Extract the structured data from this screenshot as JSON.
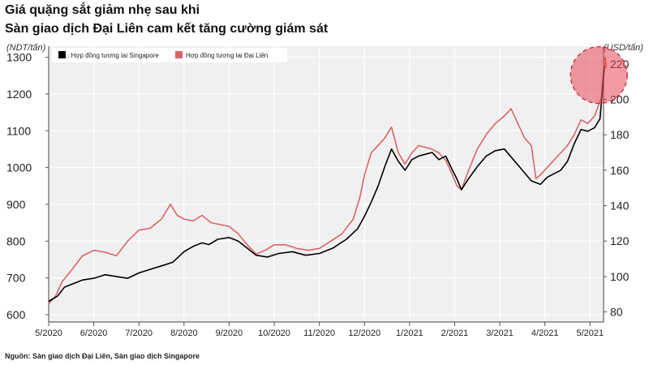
{
  "title_line1": "Giá quặng sắt giảm nhẹ sau khi",
  "title_line2": "Sàn giao dịch Đại Liên cam kết tăng cường giám sát",
  "source": "Nguồn: Sàn giao dịch Đại Liên, Sàn giao dịch Singapore",
  "chart_data": {
    "type": "line",
    "title": "Giá quặng sắt giảm nhẹ sau khi Sàn giao dịch Đại Liên cam kết tăng cường giám sát",
    "x_ticks": [
      "5/2020",
      "6/2020",
      "7/2020",
      "8/2020",
      "9/2020",
      "10/2020",
      "11/2020",
      "12/2020",
      "1/2021",
      "2/2021",
      "3/2021",
      "4/2021",
      "5/2021"
    ],
    "x_tick_positions": [
      0,
      1,
      2,
      3,
      4,
      5,
      6,
      7,
      8,
      9,
      10,
      11,
      12
    ],
    "xlim": [
      0,
      12.3
    ],
    "y_left": {
      "label": "(NDT/tấn)",
      "ticks": [
        600,
        700,
        800,
        900,
        1000,
        1100,
        1200,
        1300
      ],
      "lim": [
        580,
        1330
      ]
    },
    "y_right": {
      "label": "(USD/tấn)",
      "ticks": [
        80,
        100,
        120,
        140,
        160,
        180,
        200,
        220
      ],
      "lim": [
        74.3,
        230
      ]
    },
    "legend": {
      "placement": "top-left"
    },
    "series": [
      {
        "name": ": Hợp đồng tương lai Singapore",
        "axis": "right",
        "color": "#000000",
        "points": [
          [
            0,
            86
          ],
          [
            0.2,
            89
          ],
          [
            0.35,
            94
          ],
          [
            0.55,
            96
          ],
          [
            0.75,
            98
          ],
          [
            1,
            99
          ],
          [
            1.25,
            101
          ],
          [
            1.5,
            100
          ],
          [
            1.75,
            99
          ],
          [
            2,
            102
          ],
          [
            2.25,
            104
          ],
          [
            2.5,
            106
          ],
          [
            2.75,
            108
          ],
          [
            3,
            114
          ],
          [
            3.2,
            117
          ],
          [
            3.4,
            119
          ],
          [
            3.55,
            118
          ],
          [
            3.75,
            121
          ],
          [
            4,
            122
          ],
          [
            4.2,
            120
          ],
          [
            4.4,
            116
          ],
          [
            4.6,
            112
          ],
          [
            4.85,
            111
          ],
          [
            5.1,
            113
          ],
          [
            5.4,
            114
          ],
          [
            5.7,
            112
          ],
          [
            6,
            113
          ],
          [
            6.3,
            116
          ],
          [
            6.6,
            121
          ],
          [
            6.85,
            127
          ],
          [
            7,
            134
          ],
          [
            7.15,
            142
          ],
          [
            7.3,
            151
          ],
          [
            7.45,
            162
          ],
          [
            7.6,
            172
          ],
          [
            7.75,
            165
          ],
          [
            7.9,
            160
          ],
          [
            8.05,
            166
          ],
          [
            8.2,
            168
          ],
          [
            8.35,
            169
          ],
          [
            8.5,
            170
          ],
          [
            8.65,
            166
          ],
          [
            8.8,
            168
          ],
          [
            8.95,
            160
          ],
          [
            9.05,
            155
          ],
          [
            9.15,
            149
          ],
          [
            9.3,
            155
          ],
          [
            9.5,
            162
          ],
          [
            9.7,
            168
          ],
          [
            9.9,
            171
          ],
          [
            10.1,
            172
          ],
          [
            10.3,
            166
          ],
          [
            10.5,
            160
          ],
          [
            10.7,
            154
          ],
          [
            10.9,
            152
          ],
          [
            11.05,
            156
          ],
          [
            11.2,
            158
          ],
          [
            11.35,
            160
          ],
          [
            11.5,
            165
          ],
          [
            11.65,
            175
          ],
          [
            11.8,
            183
          ],
          [
            11.95,
            182
          ],
          [
            12.1,
            184
          ],
          [
            12.22,
            189
          ],
          [
            12.32,
            219
          ]
        ]
      },
      {
        "name": "Hợp đồng tương lai Đại Liên",
        "axis": "left",
        "color": "#d9656b",
        "points": [
          [
            0,
            630
          ],
          [
            0.15,
            650
          ],
          [
            0.3,
            690
          ],
          [
            0.5,
            720
          ],
          [
            0.75,
            760
          ],
          [
            1,
            775
          ],
          [
            1.25,
            770
          ],
          [
            1.5,
            760
          ],
          [
            1.75,
            800
          ],
          [
            2,
            830
          ],
          [
            2.25,
            835
          ],
          [
            2.5,
            860
          ],
          [
            2.7,
            900
          ],
          [
            2.85,
            870
          ],
          [
            3,
            860
          ],
          [
            3.2,
            855
          ],
          [
            3.4,
            870
          ],
          [
            3.6,
            850
          ],
          [
            3.8,
            845
          ],
          [
            4,
            840
          ],
          [
            4.2,
            820
          ],
          [
            4.4,
            790
          ],
          [
            4.6,
            765
          ],
          [
            4.8,
            775
          ],
          [
            5,
            790
          ],
          [
            5.25,
            790
          ],
          [
            5.5,
            780
          ],
          [
            5.75,
            775
          ],
          [
            6,
            780
          ],
          [
            6.25,
            800
          ],
          [
            6.5,
            820
          ],
          [
            6.75,
            860
          ],
          [
            6.9,
            920
          ],
          [
            7,
            980
          ],
          [
            7.15,
            1040
          ],
          [
            7.3,
            1060
          ],
          [
            7.45,
            1080
          ],
          [
            7.6,
            1110
          ],
          [
            7.75,
            1040
          ],
          [
            7.9,
            1010
          ],
          [
            8.05,
            1040
          ],
          [
            8.2,
            1060
          ],
          [
            8.35,
            1055
          ],
          [
            8.5,
            1050
          ],
          [
            8.65,
            1040
          ],
          [
            8.8,
            1020
          ],
          [
            8.95,
            980
          ],
          [
            9.05,
            950
          ],
          [
            9.15,
            940
          ],
          [
            9.3,
            990
          ],
          [
            9.5,
            1050
          ],
          [
            9.7,
            1090
          ],
          [
            9.9,
            1120
          ],
          [
            10.1,
            1140
          ],
          [
            10.25,
            1160
          ],
          [
            10.4,
            1120
          ],
          [
            10.55,
            1080
          ],
          [
            10.7,
            1060
          ],
          [
            10.8,
            970
          ],
          [
            10.9,
            980
          ],
          [
            11.05,
            1000
          ],
          [
            11.2,
            1020
          ],
          [
            11.35,
            1040
          ],
          [
            11.5,
            1060
          ],
          [
            11.65,
            1090
          ],
          [
            11.8,
            1130
          ],
          [
            11.95,
            1120
          ],
          [
            12.1,
            1140
          ],
          [
            12.25,
            1190
          ],
          [
            12.32,
            1295
          ],
          [
            12.34,
            1300
          ],
          [
            12.36,
            1270
          ]
        ]
      }
    ],
    "annotations": [
      {
        "type": "highlight-circle",
        "note": "peak, 5/2021"
      }
    ]
  }
}
